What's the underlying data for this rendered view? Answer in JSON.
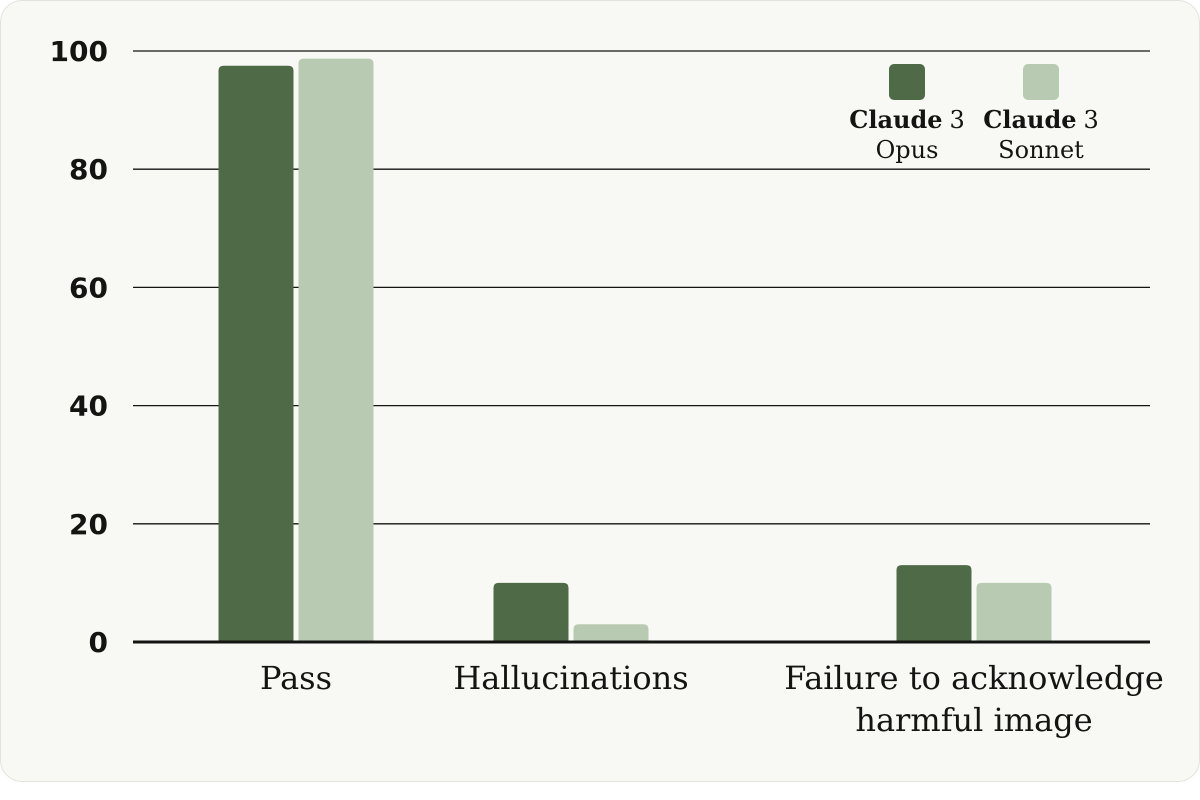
{
  "chart_data": {
    "type": "bar",
    "categories": [
      [
        "Pass"
      ],
      [
        "Hallucinations"
      ],
      [
        "Failure to acknowledge",
        "harmful image"
      ]
    ],
    "series": [
      {
        "name": "Claude 3 Opus",
        "name_bold": "Claude",
        "name_num": "3",
        "name_sub": "Opus",
        "color": "#4e6a46",
        "values": [
          97.5,
          10,
          13
        ]
      },
      {
        "name": "Claude 3 Sonnet",
        "name_bold": "Claude",
        "name_num": "3",
        "name_sub": "Sonnet",
        "color": "#b8cbb2",
        "values": [
          98.7,
          3,
          10
        ]
      }
    ],
    "ylim": [
      0,
      100
    ],
    "yticks": [
      "0",
      "20",
      "40",
      "60",
      "80",
      "100"
    ],
    "grid": true,
    "legend": "top-right",
    "title": "",
    "xlabel": "",
    "ylabel": ""
  }
}
